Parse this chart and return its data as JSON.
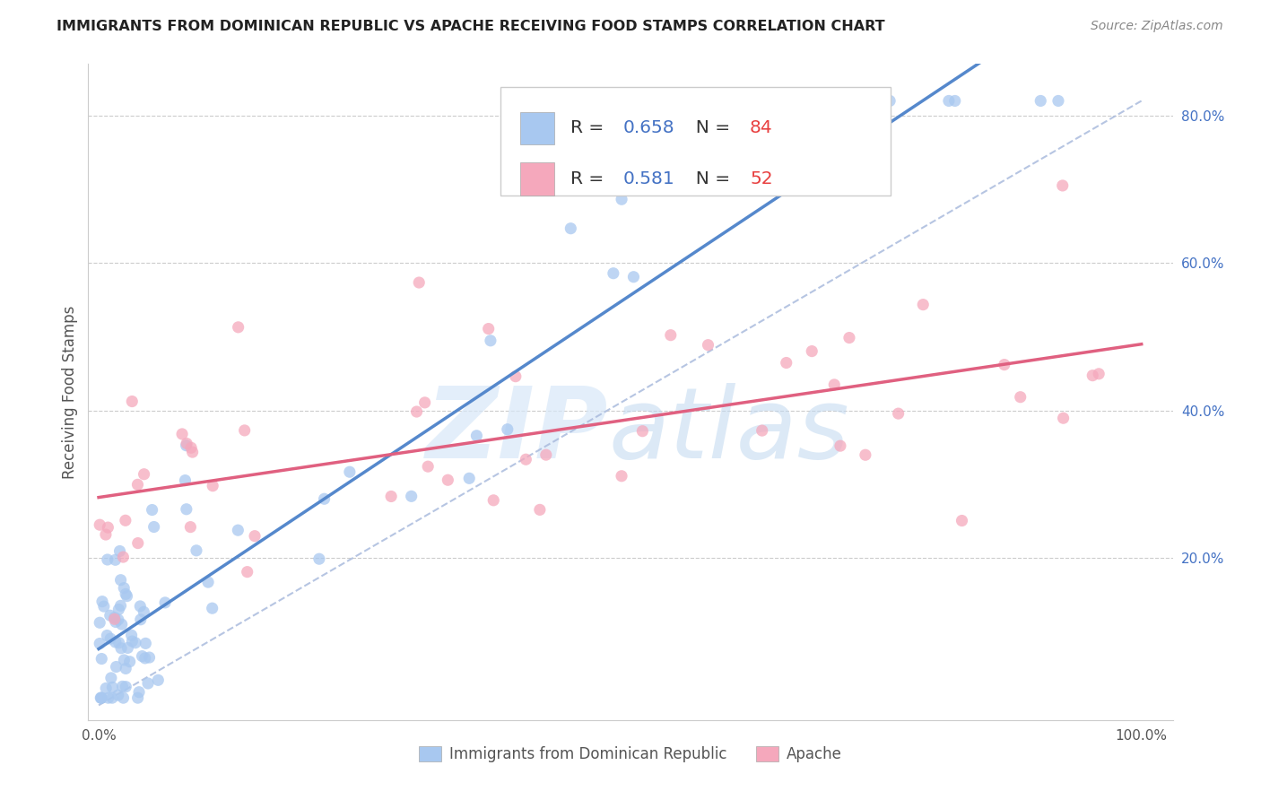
{
  "title": "IMMIGRANTS FROM DOMINICAN REPUBLIC VS APACHE RECEIVING FOOD STAMPS CORRELATION CHART",
  "source": "Source: ZipAtlas.com",
  "ylabel": "Receiving Food Stamps",
  "legend1_label": "Immigrants from Dominican Republic",
  "legend2_label": "Apache",
  "r1": 0.658,
  "n1": 84,
  "r2": 0.581,
  "n2": 52,
  "color_blue": "#A8C8F0",
  "color_pink": "#F5A8BC",
  "color_blue_line": "#5588CC",
  "color_pink_line": "#E06080",
  "color_dash": "#AABBDD",
  "xlim": [
    0,
    100
  ],
  "ylim": [
    0,
    85
  ],
  "ytick_vals": [
    20,
    40,
    60,
    80
  ],
  "ytick_labels": [
    "20.0%",
    "40.0%",
    "60.0%",
    "80.0%"
  ],
  "xtick_left_label": "0.0%",
  "xtick_right_label": "100.0%"
}
